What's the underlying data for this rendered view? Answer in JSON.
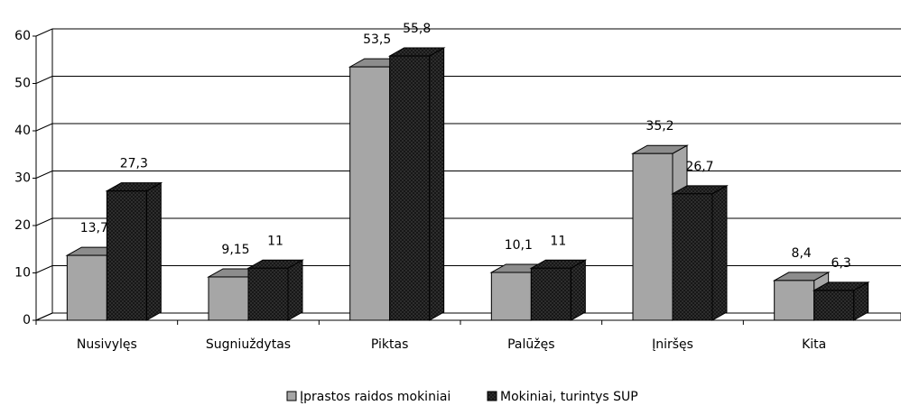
{
  "chart_data": {
    "type": "bar3d",
    "categories": [
      "Nusivylęs",
      "Sugniuždytas",
      "Piktas",
      "Palūžęs",
      "Įniršęs",
      "Kita"
    ],
    "series": [
      {
        "name": "Įprastos raidos mokiniai",
        "color": "#a6a6a6",
        "values": [
          13.7,
          9.15,
          53.5,
          10.1,
          35.2,
          8.4
        ],
        "value_labels": [
          "13,7",
          "9,15",
          "53,5",
          "10,1",
          "35,2",
          "8,4"
        ]
      },
      {
        "name": "Mokiniai, turintys SUP",
        "color": "#333333",
        "values": [
          27.3,
          11,
          55.8,
          11,
          26.7,
          6.3
        ],
        "value_labels": [
          "27,3",
          "11",
          "55,8",
          "11",
          "26,7",
          "6,3"
        ]
      }
    ],
    "ylim": [
      0,
      60
    ],
    "yticks": [
      0,
      10,
      20,
      30,
      40,
      50,
      60
    ],
    "grid": true,
    "legend": "bottom"
  }
}
